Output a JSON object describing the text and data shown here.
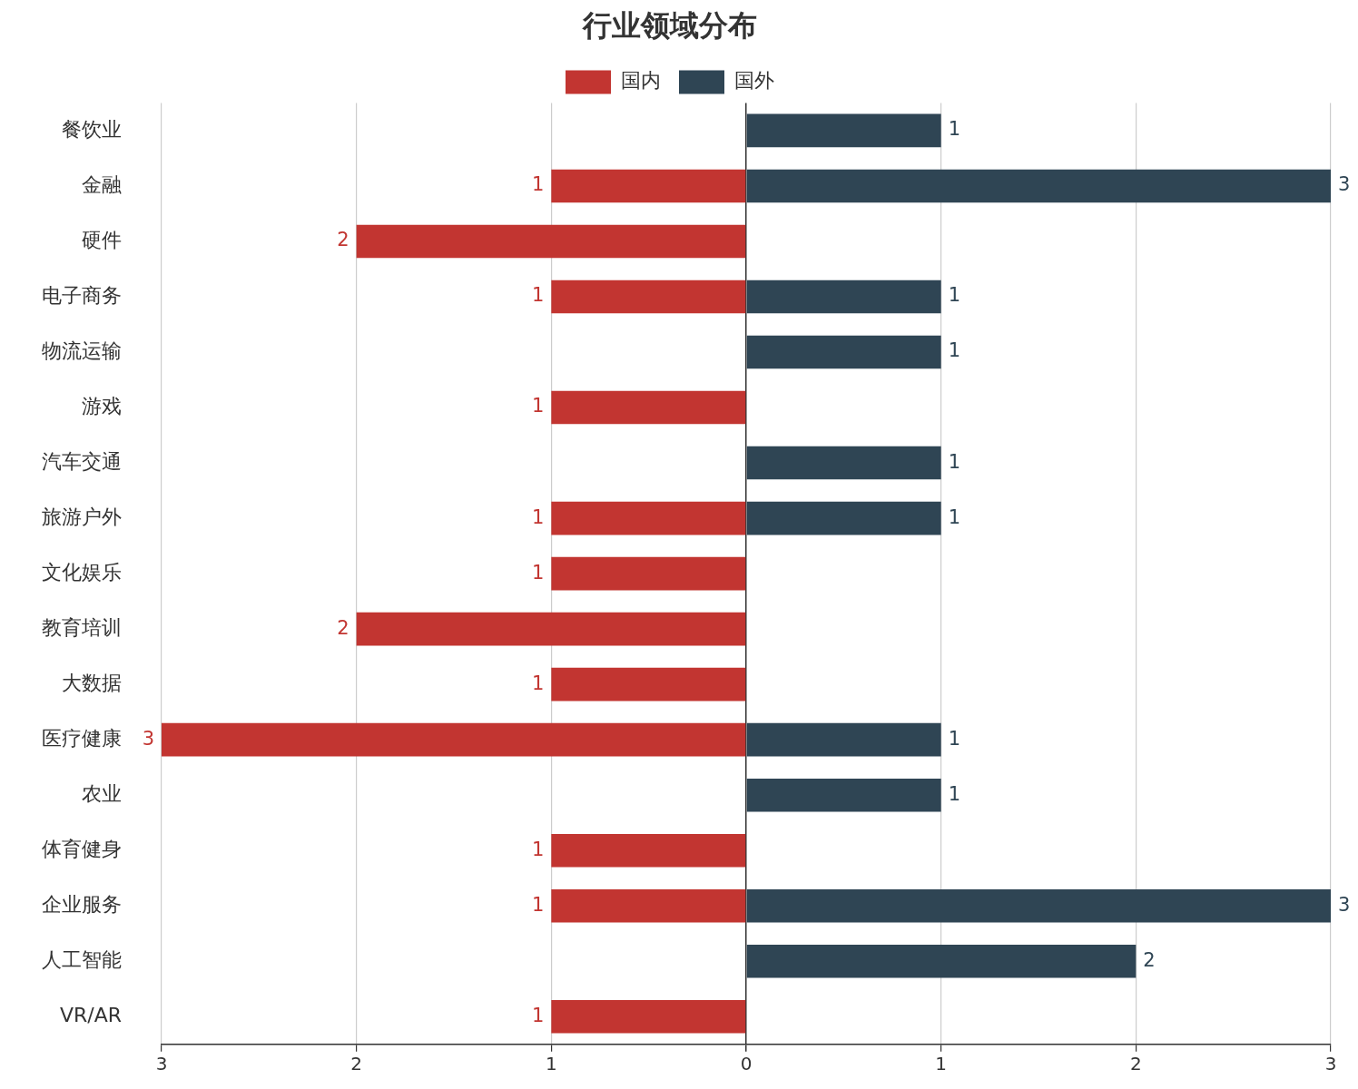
{
  "chart_data": {
    "type": "bar",
    "orientation": "horizontal",
    "title": "行业领域分布",
    "legend": "top",
    "grid": "x",
    "data_labels": true,
    "categories": [
      "餐饮业",
      "金融",
      "硬件",
      "电子商务",
      "物流运输",
      "游戏",
      "汽车交通",
      "旅游户外",
      "文化娱乐",
      "教育培训",
      "大数据",
      "医疗健康",
      "农业",
      "体育健身",
      "企业服务",
      "人工智能",
      "VR/AR"
    ],
    "xlim": [
      -3,
      3
    ],
    "xticks": [
      {
        "value": -3,
        "label": "3"
      },
      {
        "value": -2,
        "label": "2"
      },
      {
        "value": -1,
        "label": "1"
      },
      0,
      1,
      2,
      3
    ],
    "series": [
      {
        "name": "国内",
        "color": "#c23531",
        "values": [
          null,
          1,
          2,
          1,
          null,
          1,
          null,
          1,
          1,
          2,
          1,
          3,
          null,
          1,
          1,
          null,
          1
        ],
        "base": [
          null,
          -1,
          -2,
          -1,
          null,
          -1,
          null,
          -1,
          -1,
          -2,
          -1,
          -3,
          null,
          -1,
          -1,
          null,
          -1
        ]
      },
      {
        "name": "国外",
        "color": "#2f4554",
        "values": [
          1,
          3,
          null,
          1,
          1,
          null,
          1,
          1,
          null,
          null,
          null,
          1,
          1,
          null,
          3,
          2,
          null
        ]
      }
    ]
  }
}
